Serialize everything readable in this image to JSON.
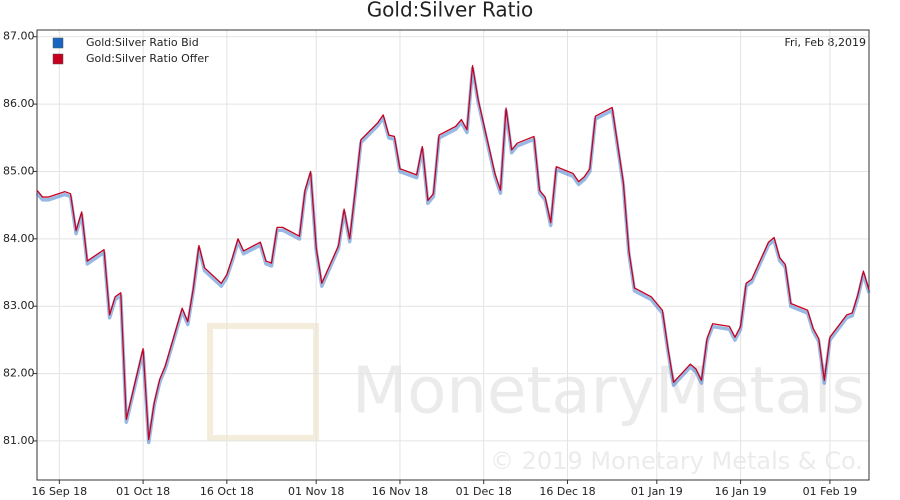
{
  "chart_data": {
    "type": "line",
    "title": "Gold:Silver Ratio",
    "date_label": "Fri, Feb 8,2019",
    "watermark": "MonetaryMetals",
    "watermark_copyright": "© 2019 Monetary Metals & Co.",
    "x": [
      "2018-09-12",
      "2018-09-13",
      "2018-09-14",
      "2018-09-17",
      "2018-09-18",
      "2018-09-19",
      "2018-09-20",
      "2018-09-21",
      "2018-09-24",
      "2018-09-25",
      "2018-09-26",
      "2018-09-27",
      "2018-09-28",
      "2018-10-01",
      "2018-10-02",
      "2018-10-03",
      "2018-10-04",
      "2018-10-05",
      "2018-10-08",
      "2018-10-09",
      "2018-10-10",
      "2018-10-11",
      "2018-10-12",
      "2018-10-15",
      "2018-10-16",
      "2018-10-17",
      "2018-10-18",
      "2018-10-19",
      "2018-10-22",
      "2018-10-23",
      "2018-10-24",
      "2018-10-25",
      "2018-10-26",
      "2018-10-29",
      "2018-10-30",
      "2018-10-31",
      "2018-11-01",
      "2018-11-02",
      "2018-11-05",
      "2018-11-06",
      "2018-11-07",
      "2018-11-08",
      "2018-11-09",
      "2018-11-12",
      "2018-11-13",
      "2018-11-14",
      "2018-11-15",
      "2018-11-16",
      "2018-11-19",
      "2018-11-20",
      "2018-11-21",
      "2018-11-22",
      "2018-11-23",
      "2018-11-26",
      "2018-11-27",
      "2018-11-28",
      "2018-11-29",
      "2018-11-30",
      "2018-12-03",
      "2018-12-04",
      "2018-12-05",
      "2018-12-06",
      "2018-12-07",
      "2018-12-10",
      "2018-12-11",
      "2018-12-12",
      "2018-12-13",
      "2018-12-14",
      "2018-12-17",
      "2018-12-18",
      "2018-12-19",
      "2018-12-20",
      "2018-12-21",
      "2018-12-24",
      "2018-12-26",
      "2018-12-27",
      "2018-12-28",
      "2018-12-31",
      "2019-01-02",
      "2019-01-03",
      "2019-01-04",
      "2019-01-07",
      "2019-01-08",
      "2019-01-09",
      "2019-01-10",
      "2019-01-11",
      "2019-01-14",
      "2019-01-15",
      "2019-01-16",
      "2019-01-17",
      "2019-01-18",
      "2019-01-21",
      "2019-01-22",
      "2019-01-23",
      "2019-01-24",
      "2019-01-25",
      "2019-01-28",
      "2019-01-29",
      "2019-01-30",
      "2019-01-31",
      "2019-02-01",
      "2019-02-04",
      "2019-02-05",
      "2019-02-06",
      "2019-02-07",
      "2019-02-08"
    ],
    "series": [
      {
        "name": "Gold:Silver Ratio Bid",
        "color": "#1a64c4",
        "values": [
          84.7,
          84.6,
          84.6,
          84.68,
          84.65,
          84.1,
          84.38,
          83.65,
          83.82,
          82.85,
          83.12,
          83.18,
          81.3,
          82.35,
          81.0,
          81.55,
          81.9,
          82.1,
          82.95,
          82.75,
          83.25,
          83.88,
          83.55,
          83.32,
          83.45,
          83.7,
          83.98,
          83.8,
          83.93,
          83.65,
          83.62,
          84.15,
          84.15,
          84.02,
          84.7,
          84.98,
          83.85,
          83.32,
          83.88,
          84.42,
          83.98,
          84.7,
          85.45,
          85.7,
          85.82,
          85.52,
          85.5,
          85.02,
          84.93,
          85.35,
          84.55,
          84.65,
          85.52,
          85.65,
          85.75,
          85.6,
          86.55,
          86.05,
          84.95,
          84.7,
          85.92,
          85.3,
          85.4,
          85.5,
          84.7,
          84.6,
          84.22,
          85.05,
          84.95,
          84.83,
          84.9,
          85.02,
          85.8,
          85.93,
          84.82,
          83.8,
          83.25,
          83.12,
          82.92,
          82.35,
          81.85,
          82.12,
          82.05,
          81.88,
          82.5,
          82.72,
          82.68,
          82.52,
          82.68,
          83.32,
          83.38,
          83.93,
          84.0,
          83.7,
          83.6,
          83.02,
          82.92,
          82.65,
          82.5,
          81.88,
          82.52,
          82.85,
          82.88,
          83.15,
          83.5,
          83.22
        ]
      },
      {
        "name": "Gold:Silver Ratio Offer",
        "color": "#c8001e",
        "values": [
          84.72,
          84.62,
          84.62,
          84.7,
          84.67,
          84.12,
          84.4,
          83.67,
          83.84,
          82.87,
          83.14,
          83.2,
          81.32,
          82.37,
          81.02,
          81.57,
          81.92,
          82.12,
          82.97,
          82.77,
          83.27,
          83.9,
          83.57,
          83.34,
          83.47,
          83.72,
          84,
          83.82,
          83.95,
          83.67,
          83.64,
          84.17,
          84.17,
          84.04,
          84.72,
          85,
          83.87,
          83.34,
          83.9,
          84.44,
          84,
          84.72,
          85.47,
          85.72,
          85.84,
          85.54,
          85.52,
          85.04,
          84.95,
          85.37,
          84.57,
          84.67,
          85.54,
          85.67,
          85.77,
          85.62,
          86.57,
          86.07,
          84.97,
          84.72,
          85.94,
          85.32,
          85.42,
          85.52,
          84.72,
          84.62,
          84.24,
          85.07,
          84.97,
          84.85,
          84.92,
          85.04,
          85.82,
          85.95,
          84.84,
          83.82,
          83.27,
          83.14,
          82.94,
          82.37,
          81.87,
          82.14,
          82.07,
          81.9,
          82.52,
          82.74,
          82.7,
          82.54,
          82.7,
          83.34,
          83.4,
          83.95,
          84.02,
          83.72,
          83.62,
          83.04,
          82.94,
          82.67,
          82.52,
          81.9,
          82.54,
          82.87,
          82.9,
          83.17,
          83.52,
          83.24
        ]
      }
    ],
    "xlim": [
      "2018-09-12",
      "2019-02-08"
    ],
    "xticks": [
      {
        "value": "2018-09-16",
        "label": "16 Sep 18"
      },
      {
        "value": "2018-10-01",
        "label": "01 Oct 18"
      },
      {
        "value": "2018-10-16",
        "label": "16 Oct 18"
      },
      {
        "value": "2018-11-01",
        "label": "01 Nov 18"
      },
      {
        "value": "2018-11-16",
        "label": "16 Nov 18"
      },
      {
        "value": "2018-12-01",
        "label": "01 Dec 18"
      },
      {
        "value": "2018-12-16",
        "label": "16 Dec 18"
      },
      {
        "value": "2019-01-01",
        "label": "01 Jan 19"
      },
      {
        "value": "2019-01-16",
        "label": "16 Jan 19"
      },
      {
        "value": "2019-02-01",
        "label": "01 Feb 19"
      }
    ],
    "ylim": [
      80.42,
      87.1
    ],
    "yticks": [
      {
        "value": 81,
        "label": "81.00"
      },
      {
        "value": 82,
        "label": "82.00"
      },
      {
        "value": 83,
        "label": "83.00"
      },
      {
        "value": 84,
        "label": "84.00"
      },
      {
        "value": 85,
        "label": "85.00"
      },
      {
        "value": 86,
        "label": "86.00"
      },
      {
        "value": 87,
        "label": "87.00"
      }
    ],
    "grid": true,
    "legend": "top-left"
  }
}
